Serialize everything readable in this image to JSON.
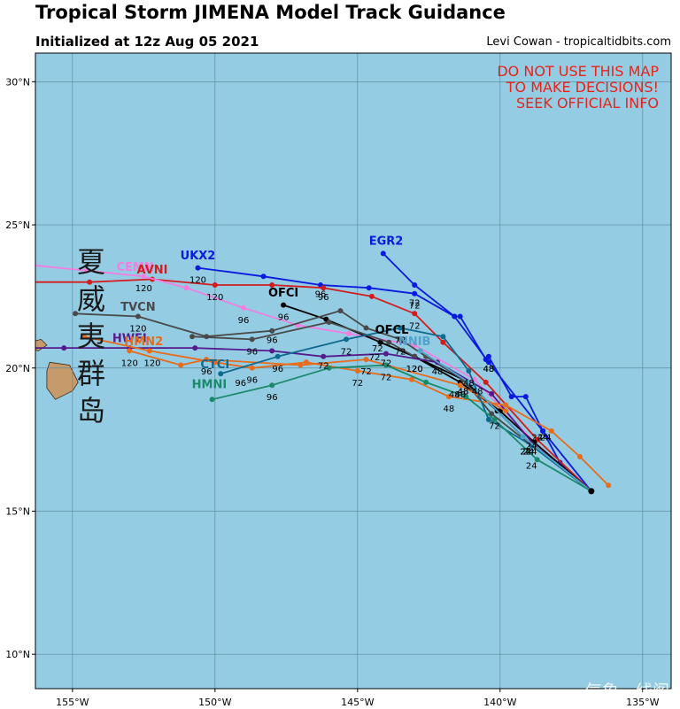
{
  "header": {
    "title": "Tropical Storm JIMENA Model Track Guidance",
    "subtitle": "Initialized at 12z Aug 05 2021",
    "credit": "Levi Cowan - tropicaltidbits.com"
  },
  "warning": [
    "DO NOT USE THIS MAP",
    "TO MAKE DECISIONS!",
    "SEEK OFFICIAL INFO"
  ],
  "overlay_chinese": [
    "夏",
    "威",
    "夷",
    "群",
    "岛"
  ],
  "watermark": "气象一线阁",
  "colors": {
    "ocean": "#94cce3",
    "land": "#c69a6a",
    "grid": "#5f8ea3",
    "warning": "#e8241c"
  },
  "chart_data": {
    "type": "scatter",
    "projection": "lon-lat",
    "xlim": [
      -156.3,
      -134.0
    ],
    "ylim": [
      8.8,
      31.0
    ],
    "x_ticks": [
      -155,
      -150,
      -145,
      -140,
      -135
    ],
    "x_tick_labels": [
      "155°W",
      "150°W",
      "145°W",
      "140°W",
      "135°W"
    ],
    "y_ticks": [
      10,
      15,
      20,
      25,
      30
    ],
    "y_tick_labels": [
      "10°N",
      "15°N",
      "20°N",
      "25°N",
      "30°N"
    ],
    "grid": true,
    "origin": [
      -136.8,
      15.7
    ],
    "series": [
      {
        "name": "EGR2",
        "color": "#0a19e0",
        "points": [
          [
            -136.8,
            15.7
          ],
          [
            -137.9,
            16.7
          ],
          [
            -138.5,
            17.8
          ],
          [
            -139.1,
            19.0
          ],
          [
            -139.6,
            19.0
          ],
          [
            -140.4,
            20.4
          ],
          [
            -140.5,
            20.3
          ],
          [
            -141.4,
            21.8
          ],
          [
            -141.6,
            21.8
          ],
          [
            -143.0,
            22.9
          ],
          [
            -144.1,
            24.0
          ]
        ],
        "labels": [
          [
            -138.5,
            17.6,
            "24"
          ],
          [
            -140.4,
            20.0,
            "48"
          ],
          [
            -143.0,
            22.3,
            "72"
          ]
        ]
      },
      {
        "name": "UKX2",
        "color": "#0a19e0",
        "points": [
          [
            -136.8,
            15.7
          ],
          [
            -138.5,
            17.8
          ],
          [
            -140.4,
            20.2
          ],
          [
            -141.6,
            21.8
          ],
          [
            -143.0,
            22.6
          ],
          [
            -144.6,
            22.8
          ],
          [
            -146.3,
            22.9
          ],
          [
            -148.3,
            23.2
          ],
          [
            -150.6,
            23.5
          ]
        ],
        "labels": [
          [
            -138.7,
            17.6,
            "24"
          ],
          [
            -140.4,
            20.0,
            "48"
          ],
          [
            -143.0,
            22.2,
            "72"
          ],
          [
            -146.3,
            22.6,
            "96"
          ],
          [
            -150.6,
            23.1,
            "120"
          ]
        ]
      },
      {
        "name": "AVNI",
        "color": "#d41c1c",
        "points": [
          [
            -136.8,
            15.7
          ],
          [
            -138.7,
            17.5
          ],
          [
            -140.5,
            19.5
          ],
          [
            -142.0,
            20.9
          ],
          [
            -143.0,
            21.9
          ],
          [
            -144.5,
            22.5
          ],
          [
            -146.2,
            22.8
          ],
          [
            -148.0,
            22.9
          ],
          [
            -150.0,
            22.9
          ],
          [
            -152.2,
            23.1
          ],
          [
            -154.4,
            23.0
          ],
          [
            -156.5,
            23.0
          ]
        ],
        "labels": [
          [
            -138.9,
            17.3,
            "24"
          ],
          [
            -140.8,
            19.2,
            "48"
          ],
          [
            -143.0,
            21.5,
            "72"
          ],
          [
            -146.2,
            22.5,
            "96"
          ],
          [
            -150.0,
            22.5,
            "120"
          ]
        ]
      },
      {
        "name": "CEMN",
        "color": "#f27ee0",
        "points": [
          [
            -136.8,
            15.7
          ],
          [
            -138.8,
            17.4
          ],
          [
            -140.9,
            19.6
          ],
          [
            -143.0,
            20.8
          ],
          [
            -145.3,
            21.2
          ],
          [
            -147.1,
            21.5
          ],
          [
            -149.0,
            22.1
          ],
          [
            -151.0,
            22.8
          ],
          [
            -152.5,
            23.2
          ],
          [
            -154.5,
            23.4
          ],
          [
            -156.5,
            23.6
          ]
        ],
        "labels": [
          [
            -149.0,
            21.7,
            "96"
          ],
          [
            -152.5,
            22.8,
            "120"
          ]
        ]
      },
      {
        "name": "OFCI",
        "color": "#000000",
        "points": [
          [
            -136.8,
            15.7
          ],
          [
            -138.8,
            17.4
          ],
          [
            -140.0,
            18.5
          ],
          [
            -141.4,
            19.5
          ],
          [
            -143.0,
            20.4
          ],
          [
            -144.2,
            20.9
          ],
          [
            -146.1,
            21.7
          ],
          [
            -147.6,
            22.2
          ]
        ],
        "labels": [
          [
            -138.9,
            17.1,
            "24"
          ],
          [
            -141.4,
            19.1,
            "48"
          ],
          [
            -143.0,
            20.0,
            "120"
          ],
          [
            -144.3,
            20.7,
            "72"
          ],
          [
            -147.6,
            21.8,
            "96"
          ]
        ]
      },
      {
        "name": "OFCL",
        "color": "#000000",
        "points": [
          [
            -136.8,
            15.7
          ],
          [
            -138.9,
            17.3
          ],
          [
            -140.1,
            18.5
          ],
          [
            -141.3,
            19.6
          ],
          [
            -143.0,
            20.4
          ],
          [
            -144.2,
            20.9
          ]
        ],
        "labels": [
          [
            -139.0,
            17.1,
            "24"
          ],
          [
            -141.3,
            19.2,
            "48"
          ],
          [
            -143.0,
            20.0,
            "120"
          ],
          [
            -144.4,
            20.4,
            "72"
          ]
        ]
      },
      {
        "name": "TVCN",
        "color": "#4a4a4a",
        "points": [
          [
            -136.8,
            15.7
          ],
          [
            -138.9,
            17.3
          ],
          [
            -140.3,
            18.4
          ],
          [
            -141.3,
            19.6
          ],
          [
            -142.6,
            20.4
          ],
          [
            -143.5,
            21.0
          ],
          [
            -144.7,
            21.4
          ],
          [
            -145.6,
            22.0
          ],
          [
            -148.0,
            21.3
          ],
          [
            -150.3,
            21.1
          ],
          [
            -152.7,
            21.8
          ],
          [
            -154.9,
            21.9
          ]
        ],
        "labels": [
          [
            -139.1,
            17.1,
            "24"
          ],
          [
            -141.3,
            19.2,
            "48"
          ],
          [
            -143.5,
            20.6,
            "72"
          ],
          [
            -148.0,
            21.0,
            "96"
          ],
          [
            -152.7,
            21.4,
            "120"
          ]
        ]
      },
      {
        "name": "TVCN-b",
        "color": "#4a4a4a",
        "points": [
          [
            -143.0,
            20.4
          ],
          [
            -143.9,
            20.9
          ],
          [
            -146.0,
            21.6
          ],
          [
            -148.7,
            21.0
          ],
          [
            -150.8,
            21.1
          ]
        ],
        "labels": [
          [
            -148.7,
            20.6,
            "96"
          ]
        ]
      },
      {
        "name": "HWFI",
        "color": "#551a8b",
        "points": [
          [
            -136.8,
            15.7
          ],
          [
            -138.8,
            17.3
          ],
          [
            -140.3,
            19.1
          ],
          [
            -142.2,
            20.2
          ],
          [
            -144.0,
            20.5
          ],
          [
            -146.2,
            20.4
          ],
          [
            -148.0,
            20.6
          ],
          [
            -150.7,
            20.7
          ],
          [
            -153.0,
            20.7
          ],
          [
            -155.3,
            20.7
          ],
          [
            -156.5,
            20.7
          ]
        ],
        "labels": [
          [
            -139.0,
            17.1,
            "24"
          ],
          [
            -142.2,
            19.9,
            "48"
          ],
          [
            -144.0,
            20.2,
            "72"
          ],
          [
            -146.2,
            20.1,
            "72"
          ]
        ]
      },
      {
        "name": "HMN2",
        "color": "#e86c1a",
        "points": [
          [
            -136.2,
            15.9
          ],
          [
            -137.2,
            16.9
          ],
          [
            -138.2,
            17.8
          ],
          [
            -139.8,
            18.7
          ],
          [
            -141.8,
            19.0
          ],
          [
            -143.1,
            19.6
          ],
          [
            -145.0,
            19.9
          ],
          [
            -146.8,
            20.2
          ],
          [
            -148.7,
            20.0
          ],
          [
            -150.0,
            20.2
          ],
          [
            -152.3,
            20.6
          ],
          [
            -154.6,
            21.1
          ]
        ],
        "labels": [
          [
            -138.4,
            17.6,
            "24"
          ],
          [
            -141.8,
            18.6,
            "48"
          ],
          [
            -145.0,
            19.5,
            "72"
          ],
          [
            -148.7,
            19.6,
            "96"
          ],
          [
            -153.0,
            20.2,
            "120"
          ]
        ]
      },
      {
        "name": "HMN2-b",
        "color": "#e86c1a",
        "points": [
          [
            -139.8,
            18.5
          ],
          [
            -141.4,
            19.4
          ],
          [
            -144.7,
            20.3
          ],
          [
            -147.0,
            20.1
          ],
          [
            -150.3,
            20.3
          ],
          [
            -151.2,
            20.1
          ],
          [
            -153.0,
            20.6
          ]
        ],
        "labels": [
          [
            -140.2,
            18.0,
            "72"
          ],
          [
            -144.7,
            19.9,
            "72"
          ],
          [
            -150.3,
            19.9,
            "96"
          ],
          [
            -152.2,
            20.2,
            "120"
          ]
        ]
      },
      {
        "name": "CTCI",
        "color": "#0e6a8e",
        "points": [
          [
            -136.8,
            15.7
          ],
          [
            -138.9,
            17.3
          ],
          [
            -140.4,
            18.2
          ],
          [
            -141.1,
            19.9
          ],
          [
            -142.0,
            21.1
          ],
          [
            -143.5,
            21.4
          ],
          [
            -145.4,
            21.0
          ],
          [
            -147.8,
            20.4
          ],
          [
            -149.8,
            19.8
          ]
        ],
        "labels": [
          [
            -139.1,
            17.1,
            "24"
          ],
          [
            -141.1,
            19.5,
            "48"
          ],
          [
            -143.5,
            21.0,
            "72"
          ],
          [
            -145.4,
            20.6,
            "72"
          ],
          [
            -147.8,
            20.0,
            "96"
          ],
          [
            -149.1,
            19.5,
            "96"
          ]
        ]
      },
      {
        "name": "NNIB",
        "color": "#51a3cb",
        "points": [
          [
            -136.8,
            15.7
          ],
          [
            -139.2,
            17.6
          ],
          [
            -141.1,
            19.5
          ],
          [
            -142.8,
            20.6
          ]
        ],
        "labels": [
          [
            -141.6,
            19.1,
            "48"
          ]
        ]
      },
      {
        "name": "HMNI",
        "color": "#1a8a6a",
        "points": [
          [
            -136.8,
            15.7
          ],
          [
            -138.7,
            16.8
          ],
          [
            -140.2,
            18.2
          ],
          [
            -141.2,
            19.0
          ],
          [
            -142.6,
            19.5
          ],
          [
            -144.0,
            20.1
          ],
          [
            -146.0,
            20.0
          ],
          [
            -148.0,
            19.4
          ],
          [
            -150.1,
            18.9
          ]
        ],
        "labels": [
          [
            -138.9,
            16.6,
            "24"
          ],
          [
            -144.0,
            19.7,
            "72"
          ],
          [
            -148.0,
            19.0,
            "96"
          ]
        ]
      }
    ],
    "legend_labels": [
      {
        "text": "EGR2",
        "lon": -144.0,
        "lat": 24.3,
        "color": "#0a19e0"
      },
      {
        "text": "UKX2",
        "lon": -150.6,
        "lat": 23.8,
        "color": "#0a19e0"
      },
      {
        "text": "CEMN",
        "lon": -152.8,
        "lat": 23.4,
        "color": "#f27ee0"
      },
      {
        "text": "AVNI",
        "lon": -152.2,
        "lat": 23.3,
        "color": "#d41c1c"
      },
      {
        "text": "OFCI",
        "lon": -147.6,
        "lat": 22.5,
        "color": "#000000"
      },
      {
        "text": "TVCN",
        "lon": -152.7,
        "lat": 22.0,
        "color": "#4a4a4a"
      },
      {
        "text": "OFCL",
        "lon": -143.8,
        "lat": 21.2,
        "color": "#000000"
      },
      {
        "text": "NNIB",
        "lon": -143.0,
        "lat": 20.8,
        "color": "#51a3cb"
      },
      {
        "text": "HWFI",
        "lon": -153.0,
        "lat": 20.9,
        "color": "#551a8b"
      },
      {
        "text": "HMN2",
        "lon": -152.5,
        "lat": 20.8,
        "color": "#e86c1a"
      },
      {
        "text": "CTCI",
        "lon": -150.0,
        "lat": 20.0,
        "color": "#0e6a8e"
      },
      {
        "text": "HMNI",
        "lon": -150.2,
        "lat": 19.3,
        "color": "#1a8a6a"
      }
    ],
    "land": [
      {
        "name": "hawaii-big-island",
        "polygon": [
          [
            -155.8,
            20.2
          ],
          [
            -155.1,
            20.1
          ],
          [
            -154.8,
            19.5
          ],
          [
            -155.0,
            19.2
          ],
          [
            -155.6,
            18.9
          ],
          [
            -155.9,
            19.3
          ],
          [
            -155.9,
            19.9
          ]
        ]
      },
      {
        "name": "maui",
        "polygon": [
          [
            -156.5,
            20.9
          ],
          [
            -156.1,
            21.0
          ],
          [
            -155.9,
            20.8
          ],
          [
            -156.2,
            20.6
          ],
          [
            -156.5,
            20.7
          ]
        ]
      }
    ]
  }
}
